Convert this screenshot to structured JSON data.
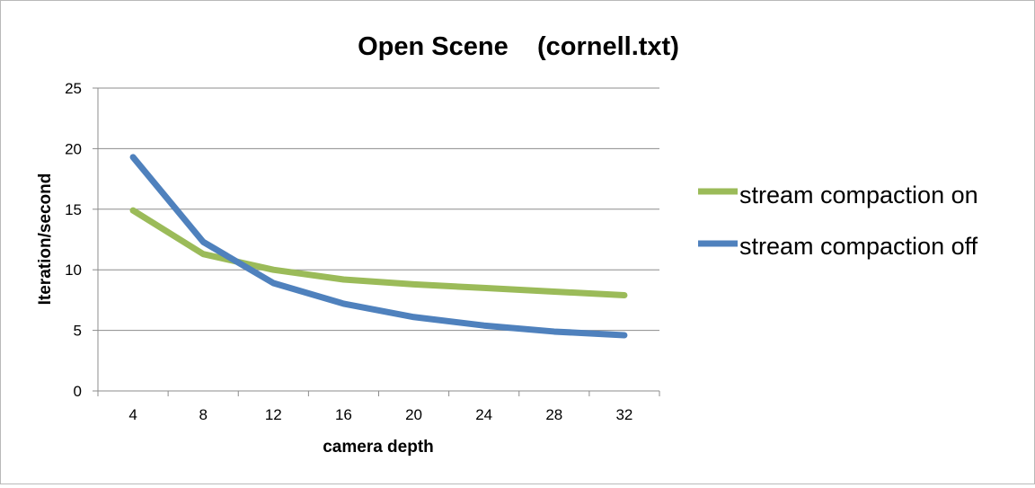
{
  "chart_data": {
    "type": "line",
    "title": "Open Scene    (cornell.txt)",
    "xlabel": "camera depth",
    "ylabel": "Iteration/second",
    "categories": [
      "4",
      "8",
      "12",
      "16",
      "20",
      "24",
      "28",
      "32"
    ],
    "ylim": [
      0,
      25
    ],
    "yticks": [
      "0",
      "5",
      "10",
      "15",
      "20",
      "25"
    ],
    "grid": true,
    "legend_position": "right",
    "series": [
      {
        "name": "stream compaction on",
        "color": "#9bbb59",
        "values": [
          14.9,
          11.3,
          10.0,
          9.2,
          8.8,
          8.5,
          8.2,
          7.9
        ]
      },
      {
        "name": "stream compaction off",
        "color": "#4f81bd",
        "values": [
          19.3,
          12.3,
          8.9,
          7.2,
          6.1,
          5.4,
          4.9,
          4.6
        ]
      }
    ]
  }
}
